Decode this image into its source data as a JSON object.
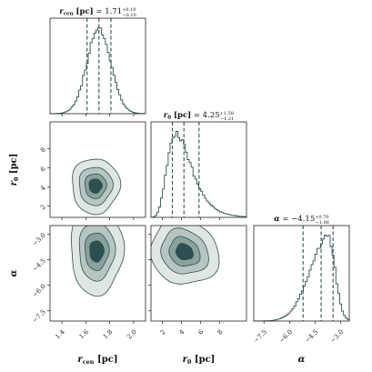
{
  "chart_data": {
    "type": "corner",
    "color": "#2e4f4f",
    "fill_colors": [
      "#dfe6e4",
      "#b6c5c1",
      "#8aa29c",
      "#2e4f4f"
    ],
    "parameters": [
      {
        "key": "rcen",
        "symbol": "r",
        "subscript": "cen",
        "unit": "[pc]",
        "title_symbol": "r",
        "title_sub": "cen",
        "title_unit": " [pc]",
        "title_value": " = 1.71",
        "title_plus": "+0.10",
        "title_minus": "−0.10",
        "range": [
          1.3,
          2.1
        ],
        "ticks": [
          "1.4",
          "1.6",
          "1.8",
          "2.0"
        ],
        "tick_values": [
          1.4,
          1.6,
          1.8,
          2.0
        ],
        "median": 1.71,
        "q16": 1.61,
        "q84": 1.81,
        "sigma": 0.1
      },
      {
        "key": "r0",
        "symbol": "r",
        "subscript": "0",
        "unit": "[pc]",
        "title_symbol": "r",
        "title_sub": "0",
        "title_unit": " [pc]",
        "title_value": " = 4.25",
        "title_plus": "+1.58",
        "title_minus": "−1.21",
        "range": [
          0.8,
          10.8
        ],
        "ticks": [
          "2",
          "4",
          "6",
          "8"
        ],
        "tick_values": [
          2,
          4,
          6,
          8
        ],
        "median": 4.25,
        "q16": 3.04,
        "q84": 5.83,
        "sigma": 1.4
      },
      {
        "key": "alpha",
        "symbol": "α",
        "subscript": "",
        "unit": "",
        "title_symbol": "α",
        "title_sub": "",
        "title_unit": "",
        "title_value": " = −4.15",
        "title_plus": "+0.70",
        "title_minus": "−1.06",
        "range": [
          -8.1,
          -2.5
        ],
        "ticks": [
          "−7.5",
          "−6.0",
          "−4.5",
          "−3.0"
        ],
        "tick_values": [
          -7.5,
          -6.0,
          -4.5,
          -3.0
        ],
        "median": -4.15,
        "q16": -5.21,
        "q84": -3.45,
        "sigma": 0.9
      }
    ],
    "contours_2d": [
      {
        "pair": [
          "rcen",
          "r0"
        ],
        "center": [
          1.68,
          4.1
        ],
        "levels": [
          [
            0.2,
            2.9
          ],
          [
            0.14,
            2.0
          ],
          [
            0.09,
            1.3
          ],
          [
            0.055,
            0.75
          ]
        ]
      },
      {
        "pair": [
          "rcen",
          "alpha"
        ],
        "center": [
          1.69,
          -4.0
        ],
        "levels": [
          [
            0.22,
            2.55
          ],
          [
            0.15,
            1.7
          ],
          [
            0.1,
            1.1
          ],
          [
            0.06,
            0.62
          ]
        ]
      },
      {
        "pair": [
          "r0",
          "alpha"
        ],
        "center": [
          4.3,
          -4.05
        ],
        "levels": [
          [
            3.7,
            1.85
          ],
          [
            2.6,
            1.25
          ],
          [
            1.7,
            0.8
          ],
          [
            0.95,
            0.45
          ]
        ]
      }
    ],
    "quantile_lines": "16th, 50th, 84th percentiles (dashed)"
  }
}
